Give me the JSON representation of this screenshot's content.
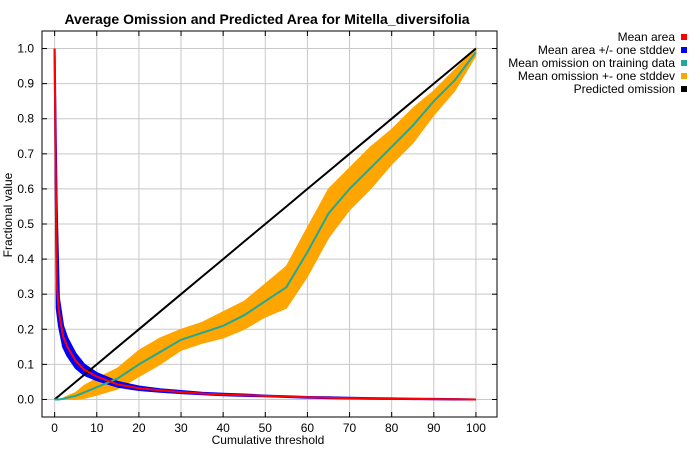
{
  "chart_data": {
    "type": "line",
    "title": "Average Omission and Predicted Area for Mitella_diversifolia",
    "xlabel": "Cumulative threshold",
    "ylabel": "Fractional value",
    "xlim": [
      -3,
      105
    ],
    "ylim": [
      -0.05,
      1.05
    ],
    "xticks": [
      0,
      10,
      20,
      30,
      40,
      50,
      60,
      70,
      80,
      90,
      100
    ],
    "yticks": [
      0.0,
      0.1,
      0.2,
      0.3,
      0.4,
      0.5,
      0.6,
      0.7,
      0.8,
      0.9,
      1.0
    ],
    "grid": true,
    "legend_position": "top-right outside",
    "x": [
      0,
      0.5,
      1,
      2,
      3,
      5,
      7,
      10,
      15,
      20,
      25,
      30,
      35,
      40,
      45,
      50,
      55,
      60,
      65,
      70,
      75,
      80,
      85,
      90,
      95,
      100
    ],
    "series": [
      {
        "name": "Mean area",
        "color": "#ff0000",
        "values": [
          1.0,
          0.33,
          0.25,
          0.18,
          0.15,
          0.11,
          0.085,
          0.065,
          0.043,
          0.032,
          0.026,
          0.021,
          0.017,
          0.014,
          0.012,
          0.01,
          0.008,
          0.006,
          0.005,
          0.004,
          0.003,
          0.002,
          0.0015,
          0.001,
          0.0005,
          0.0
        ]
      },
      {
        "name": "Mean area +/- one stddev",
        "color": "#0000ff",
        "upper": [
          1.0,
          0.55,
          0.29,
          0.21,
          0.175,
          0.13,
          0.1,
          0.075,
          0.05,
          0.037,
          0.029,
          0.024,
          0.019,
          0.016,
          0.014,
          0.011,
          0.009,
          0.007,
          0.006,
          0.005,
          0.004,
          0.003,
          0.002,
          0.0015,
          0.001,
          0.0
        ],
        "lower": [
          1.0,
          0.26,
          0.21,
          0.15,
          0.125,
          0.09,
          0.07,
          0.055,
          0.036,
          0.027,
          0.022,
          0.018,
          0.015,
          0.012,
          0.01,
          0.009,
          0.007,
          0.005,
          0.004,
          0.003,
          0.002,
          0.0015,
          0.001,
          0.0005,
          0.0,
          0.0
        ]
      },
      {
        "name": "Mean omission on training data",
        "color": "#20a898",
        "values": [
          0.0,
          0.0,
          0.0,
          0.002,
          0.005,
          0.01,
          0.02,
          0.035,
          0.06,
          0.1,
          0.135,
          0.17,
          0.19,
          0.21,
          0.24,
          0.28,
          0.32,
          0.42,
          0.53,
          0.6,
          0.66,
          0.72,
          0.78,
          0.85,
          0.91,
          0.99
        ]
      },
      {
        "name": "Mean omission +- one stddev",
        "color": "#ffa500",
        "upper": [
          0.0,
          0.0,
          0.0,
          0.004,
          0.01,
          0.02,
          0.04,
          0.06,
          0.09,
          0.14,
          0.175,
          0.2,
          0.22,
          0.25,
          0.28,
          0.33,
          0.38,
          0.49,
          0.6,
          0.66,
          0.72,
          0.77,
          0.83,
          0.88,
          0.94,
          1.0
        ],
        "lower": [
          0.0,
          0.0,
          0.0,
          0.0,
          0.0,
          0.0,
          0.003,
          0.012,
          0.03,
          0.065,
          0.1,
          0.14,
          0.16,
          0.175,
          0.2,
          0.235,
          0.26,
          0.35,
          0.46,
          0.54,
          0.6,
          0.67,
          0.73,
          0.81,
          0.88,
          0.98
        ]
      },
      {
        "name": "Predicted omission",
        "color": "#000000",
        "values": [
          0,
          0.005,
          0.01,
          0.02,
          0.03,
          0.05,
          0.07,
          0.1,
          0.15,
          0.2,
          0.25,
          0.3,
          0.35,
          0.4,
          0.45,
          0.5,
          0.55,
          0.6,
          0.65,
          0.7,
          0.75,
          0.8,
          0.85,
          0.9,
          0.95,
          1.0
        ]
      }
    ]
  }
}
